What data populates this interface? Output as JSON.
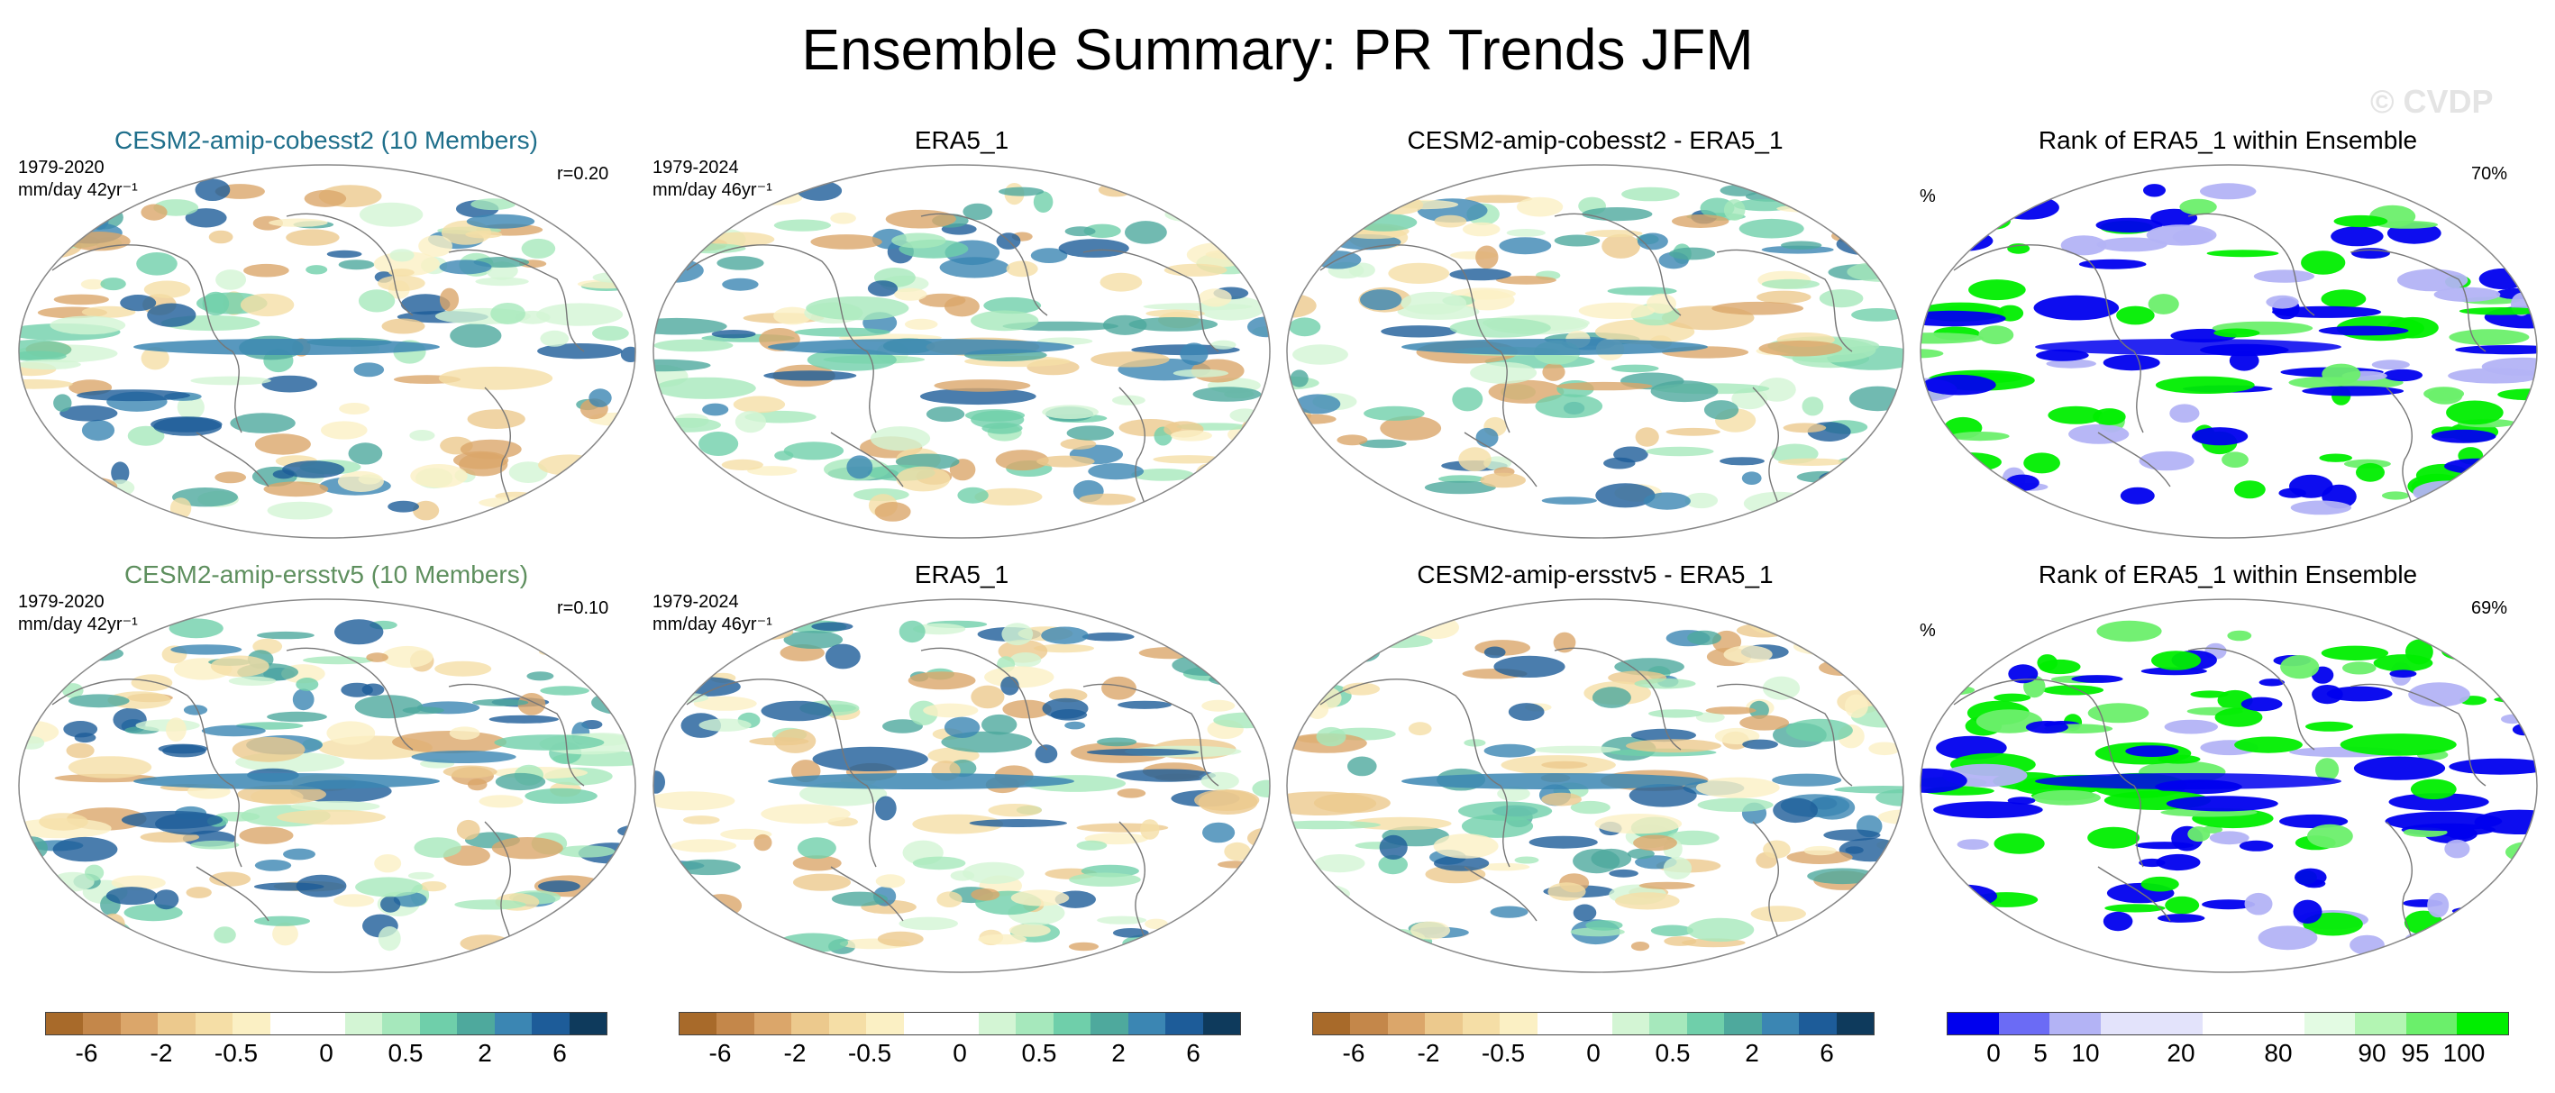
{
  "title": "Ensemble Summary: PR Trends JFM",
  "watermark": "© CVDP",
  "rows": [
    {
      "model_title": "CESM2-amip-cobesst2 (10 Members)",
      "model_title_color": "#1f6f8b",
      "model_period": "1979-2020",
      "model_units": "mm/day 42yr⁻¹",
      "corr": "r=0.20",
      "obs_title": "ERA5_1",
      "obs_period": "1979-2024",
      "obs_units": "mm/day 46yr⁻¹",
      "diff_title": "CESM2-amip-cobesst2 - ERA5_1",
      "rank_title": "Rank of ERA5_1 within Ensemble",
      "rank_unit": "%",
      "rank_pct": "70%"
    },
    {
      "model_title": "CESM2-amip-ersstv5 (10 Members)",
      "model_title_color": "#5e8f5e",
      "model_period": "1979-2020",
      "model_units": "mm/day 42yr⁻¹",
      "corr": "r=0.10",
      "obs_title": "ERA5_1",
      "obs_period": "1979-2024",
      "obs_units": "mm/day 46yr⁻¹",
      "diff_title": "CESM2-amip-ersstv5 - ERA5_1",
      "rank_title": "Rank of ERA5_1 within Ensemble",
      "rank_unit": "%",
      "rank_pct": "69%"
    }
  ],
  "trend_colorbar": {
    "colors": [
      "#a86a2a",
      "#c4874a",
      "#dba66a",
      "#ecc98d",
      "#f5dea6",
      "#fbf0c4",
      "#ffffff",
      "#ffffff",
      "#d3f5d4",
      "#a6e8bc",
      "#6fcfaa",
      "#4ea99d",
      "#3b86b3",
      "#1d5c99",
      "#0e3a5c"
    ],
    "labels": [
      "-6",
      "-2",
      "-0.5",
      "0",
      "0.5",
      "2",
      "6"
    ]
  },
  "rank_colorbar": {
    "colors": [
      "#0000ee",
      "#6b6bf5",
      "#b3b3f5",
      "#e3e3fb",
      "#e3e3fb",
      "#ffffff",
      "#ffffff",
      "#e3fbe3",
      "#b3f5b3",
      "#6bef6b",
      "#00ee00"
    ],
    "labels": [
      "0",
      "5",
      "10",
      "20",
      "80",
      "90",
      "95",
      "100"
    ]
  }
}
